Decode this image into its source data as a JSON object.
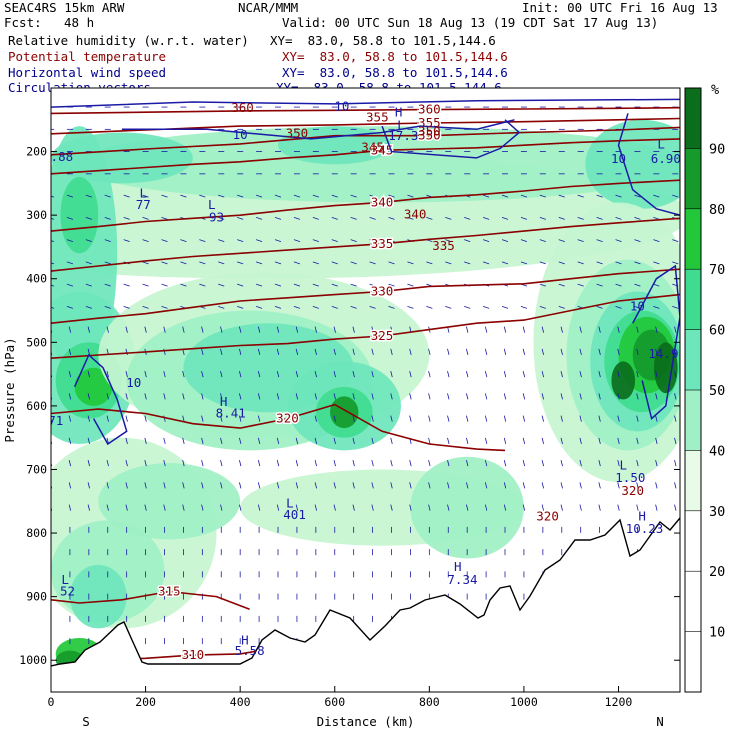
{
  "header": {
    "model": "SEAC4RS 15km ARW",
    "org": "NCAR/MMM",
    "init": "Init: 00 UTC Fri 16 Aug 13",
    "fcst_label": "Fcst:",
    "fcst_value": "48 h",
    "valid": "Valid: 00 UTC Sun 18 Aug 13 (19 CDT Sat 17 Aug 13)"
  },
  "fields": [
    {
      "name": "Relative humidity (w.r.t. water)",
      "xy": "XY=  83.0, 58.8 to 101.5,144.6",
      "color": "#000000"
    },
    {
      "name": "Potential temperature",
      "xy": "XY=  83.0, 58.8 to 101.5,144.6",
      "color": "#8b0000"
    },
    {
      "name": "Horizontal wind speed",
      "xy": "XY=  83.0, 58.8 to 101.5,144.6",
      "color": "#00008b"
    },
    {
      "name": "Circulation vectors",
      "xy": "XY=  83.0, 58.8 to 101.5,144.6",
      "color": "#00008b"
    }
  ],
  "colors": {
    "theta": "#8b0000",
    "wind": "#1a1aa6",
    "terrain": "#000000",
    "rh_levels": [
      "#ffffff",
      "#e8fbe8",
      "#c6f5d0",
      "#9ff0c4",
      "#6ee6bc",
      "#3fdc90",
      "#22c83a",
      "#159a2b",
      "#0b6e1c"
    ]
  },
  "chart_data": {
    "type": "heatmap",
    "title": "",
    "xlabel": "Distance (km)",
    "ylabel": "Pressure (hPa)",
    "xlim": [
      0,
      1330
    ],
    "ylim": [
      1050,
      100
    ],
    "x_ticks": [
      "0",
      "200",
      "400",
      "600",
      "800",
      "1000",
      "1200"
    ],
    "x_tick_values": [
      0,
      200,
      400,
      600,
      800,
      1000,
      1200
    ],
    "y_ticks": [
      "200",
      "300",
      "400",
      "500",
      "600",
      "700",
      "800",
      "900",
      "1000"
    ],
    "y_tick_values": [
      200,
      300,
      400,
      500,
      600,
      700,
      800,
      900,
      1000
    ],
    "end_labels": {
      "left": "S",
      "right": "N"
    },
    "colorbar": {
      "unit": "%",
      "levels": [
        10,
        20,
        30,
        40,
        50,
        60,
        70,
        80,
        90
      ],
      "labels": [
        "10",
        "20",
        "30",
        "40",
        "50",
        "60",
        "70",
        "80",
        "90"
      ]
    },
    "theta_contours": [
      {
        "label": "310",
        "points": [
          [
            20,
            1012
          ],
          [
            100,
            1000
          ],
          [
            200,
            997
          ],
          [
            300,
            992
          ],
          [
            400,
            990
          ],
          [
            440,
            985
          ]
        ]
      },
      {
        "label": "315",
        "points": [
          [
            0,
            905
          ],
          [
            60,
            910
          ],
          [
            150,
            905
          ],
          [
            250,
            892
          ],
          [
            350,
            900
          ],
          [
            420,
            920
          ]
        ]
      },
      {
        "label": "320",
        "points": [
          [
            0,
            612
          ],
          [
            100,
            605
          ],
          [
            200,
            612
          ],
          [
            300,
            628
          ],
          [
            400,
            635
          ],
          [
            500,
            620
          ],
          [
            600,
            598
          ],
          [
            700,
            640
          ],
          [
            800,
            660
          ],
          [
            900,
            668
          ],
          [
            960,
            670
          ]
        ]
      },
      {
        "label": "325",
        "points": [
          [
            0,
            525
          ],
          [
            100,
            520
          ],
          [
            200,
            515
          ],
          [
            300,
            510
          ],
          [
            400,
            505
          ],
          [
            500,
            502
          ],
          [
            600,
            495
          ],
          [
            700,
            490
          ],
          [
            800,
            480
          ],
          [
            900,
            470
          ],
          [
            1000,
            465
          ],
          [
            1100,
            450
          ],
          [
            1200,
            435
          ],
          [
            1330,
            425
          ]
        ]
      },
      {
        "label": "330",
        "points": [
          [
            0,
            470
          ],
          [
            100,
            462
          ],
          [
            200,
            455
          ],
          [
            300,
            445
          ],
          [
            400,
            435
          ],
          [
            500,
            430
          ],
          [
            600,
            425
          ],
          [
            700,
            420
          ],
          [
            800,
            412
          ],
          [
            900,
            410
          ],
          [
            1000,
            408
          ],
          [
            1100,
            400
          ],
          [
            1200,
            392
          ],
          [
            1330,
            385
          ]
        ]
      },
      {
        "label": "335",
        "points": [
          [
            0,
            388
          ],
          [
            100,
            380
          ],
          [
            200,
            372
          ],
          [
            300,
            365
          ],
          [
            400,
            360
          ],
          [
            500,
            355
          ],
          [
            600,
            350
          ],
          [
            700,
            345
          ],
          [
            800,
            338
          ],
          [
            900,
            332
          ],
          [
            1000,
            325
          ],
          [
            1100,
            318
          ],
          [
            1200,
            312
          ],
          [
            1330,
            305
          ]
        ]
      },
      {
        "label": "340",
        "points": [
          [
            0,
            325
          ],
          [
            100,
            318
          ],
          [
            200,
            310
          ],
          [
            300,
            305
          ],
          [
            400,
            300
          ],
          [
            500,
            292
          ],
          [
            600,
            285
          ],
          [
            700,
            280
          ],
          [
            800,
            272
          ],
          [
            900,
            268
          ],
          [
            1000,
            262
          ],
          [
            1100,
            255
          ],
          [
            1200,
            250
          ],
          [
            1330,
            245
          ]
        ]
      },
      {
        "label": "345",
        "points": [
          [
            0,
            235
          ],
          [
            100,
            230
          ],
          [
            200,
            225
          ],
          [
            300,
            220
          ],
          [
            400,
            216
          ],
          [
            500,
            210
          ],
          [
            600,
            205
          ],
          [
            700,
            198
          ],
          [
            800,
            196
          ],
          [
            900,
            194
          ],
          [
            1000,
            190
          ],
          [
            1100,
            186
          ],
          [
            1200,
            183
          ],
          [
            1330,
            180
          ]
        ]
      },
      {
        "label": "350",
        "points": [
          [
            0,
            205
          ],
          [
            200,
            196
          ],
          [
            400,
            188
          ],
          [
            600,
            175
          ],
          [
            800,
            175
          ],
          [
            1000,
            170
          ],
          [
            1200,
            166
          ],
          [
            1330,
            162
          ]
        ]
      },
      {
        "label": "355",
        "points": [
          [
            0,
            172
          ],
          [
            200,
            166
          ],
          [
            400,
            160
          ],
          [
            600,
            158
          ],
          [
            800,
            155
          ],
          [
            1000,
            153
          ],
          [
            1200,
            150
          ],
          [
            1330,
            148
          ]
        ]
      },
      {
        "label": "360",
        "points": [
          [
            0,
            140
          ],
          [
            200,
            138
          ],
          [
            400,
            136
          ],
          [
            600,
            135
          ],
          [
            800,
            134
          ],
          [
            1000,
            133
          ],
          [
            1200,
            132
          ],
          [
            1330,
            131
          ]
        ]
      }
    ],
    "annotations": [
      {
        "text": "L",
        "x": 195,
        "y": 272,
        "color": "wind"
      },
      {
        "text": "77",
        "x": 195,
        "y": 290,
        "color": "wind"
      },
      {
        "text": "L",
        "x": 340,
        "y": 290,
        "color": "wind"
      },
      {
        "text": "93",
        "x": 350,
        "y": 310,
        "color": "wind"
      },
      {
        "text": "H",
        "x": 365,
        "y": 600,
        "color": "wind"
      },
      {
        "text": "8.41",
        "x": 380,
        "y": 618,
        "color": "wind"
      },
      {
        "text": "L",
        "x": 505,
        "y": 760,
        "color": "wind"
      },
      {
        "text": "401",
        "x": 515,
        "y": 778,
        "color": "wind"
      },
      {
        "text": "H",
        "x": 860,
        "y": 860,
        "color": "wind"
      },
      {
        "text": "7.34",
        "x": 870,
        "y": 880,
        "color": "wind"
      },
      {
        "text": "L",
        "x": 30,
        "y": 880,
        "color": "wind"
      },
      {
        "text": "52",
        "x": 35,
        "y": 898,
        "color": "wind"
      },
      {
        "text": "H",
        "x": 410,
        "y": 975,
        "color": "wind"
      },
      {
        "text": "5.58",
        "x": 420,
        "y": 992,
        "color": "wind"
      },
      {
        "text": "L",
        "x": 1210,
        "y": 700,
        "color": "wind"
      },
      {
        "text": "1.50",
        "x": 1225,
        "y": 720,
        "color": "wind"
      },
      {
        "text": "H",
        "x": 1250,
        "y": 780,
        "color": "wind"
      },
      {
        "text": "10.23",
        "x": 1255,
        "y": 800,
        "color": "wind"
      },
      {
        "text": "L",
        "x": 1290,
        "y": 195,
        "color": "wind"
      },
      {
        "text": "6.90",
        "x": 1300,
        "y": 218,
        "color": "wind"
      },
      {
        "text": "L",
        "x": 740,
        "y": 165,
        "color": "wind"
      },
      {
        "text": "17.3",
        "x": 745,
        "y": 182,
        "color": "wind"
      },
      {
        "text": "H",
        "x": 735,
        "y": 145,
        "color": "wind"
      },
      {
        "text": "14.9",
        "x": 1295,
        "y": 525,
        "color": "wind"
      },
      {
        "text": "2.88",
        "x": 15,
        "y": 215,
        "color": "wind"
      },
      {
        "text": "71",
        "x": 10,
        "y": 630,
        "color": "wind"
      },
      {
        "text": "10",
        "x": 175,
        "y": 570,
        "color": "wind"
      },
      {
        "text": "10",
        "x": 400,
        "y": 180,
        "color": "wind"
      },
      {
        "text": "10",
        "x": 615,
        "y": 135,
        "color": "wind"
      },
      {
        "text": "10",
        "x": 1200,
        "y": 218,
        "color": "wind"
      },
      {
        "text": "10",
        "x": 1240,
        "y": 450,
        "color": "wind"
      },
      {
        "text": "320",
        "x": 1050,
        "y": 780,
        "color": "theta"
      },
      {
        "text": "320",
        "x": 1230,
        "y": 740,
        "color": "theta"
      },
      {
        "text": "340",
        "x": 770,
        "y": 305,
        "color": "theta"
      },
      {
        "text": "335",
        "x": 830,
        "y": 355,
        "color": "theta"
      },
      {
        "text": "345",
        "x": 680,
        "y": 200,
        "color": "theta"
      },
      {
        "text": "350",
        "x": 800,
        "y": 175,
        "color": "theta"
      },
      {
        "text": "350",
        "x": 520,
        "y": 178,
        "color": "theta"
      },
      {
        "text": "355",
        "x": 690,
        "y": 153,
        "color": "theta"
      },
      {
        "text": "360",
        "x": 405,
        "y": 138,
        "color": "theta"
      }
    ]
  }
}
